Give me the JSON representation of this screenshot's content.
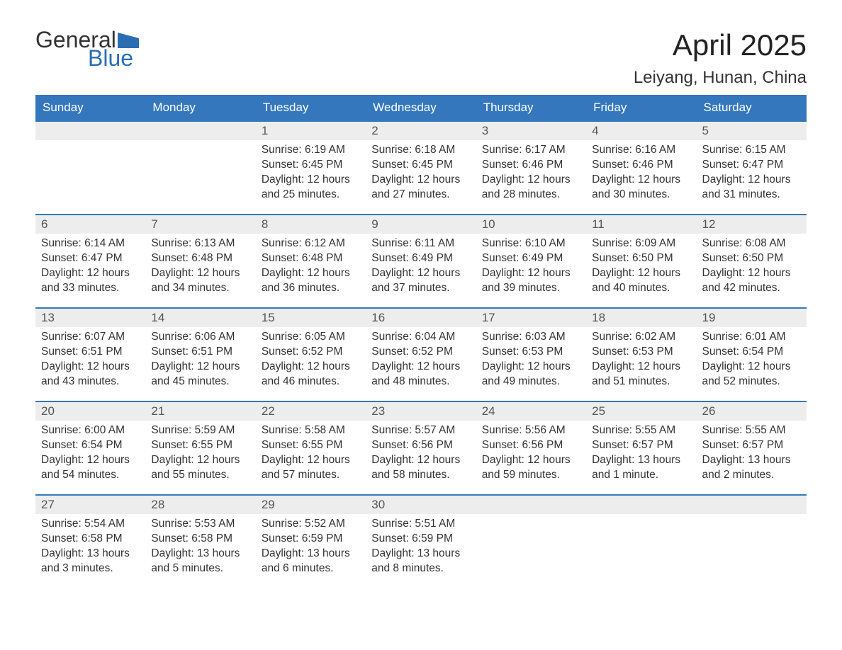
{
  "logo": {
    "general": "General",
    "blue": "Blue",
    "flag_color": "#2a6db3"
  },
  "header": {
    "title": "April 2025",
    "location": "Leiyang, Hunan, China"
  },
  "colors": {
    "header_bg": "#3477bd",
    "header_text": "#ffffff",
    "daynum_bg": "#ededed",
    "border": "#3477bd",
    "body_text": "#333333"
  },
  "day_names": [
    "Sunday",
    "Monday",
    "Tuesday",
    "Wednesday",
    "Thursday",
    "Friday",
    "Saturday"
  ],
  "weeks": [
    [
      {
        "n": "",
        "sr": "",
        "ss": "",
        "dl": ""
      },
      {
        "n": "",
        "sr": "",
        "ss": "",
        "dl": ""
      },
      {
        "n": "1",
        "sr": "Sunrise: 6:19 AM",
        "ss": "Sunset: 6:45 PM",
        "dl": "Daylight: 12 hours and 25 minutes."
      },
      {
        "n": "2",
        "sr": "Sunrise: 6:18 AM",
        "ss": "Sunset: 6:45 PM",
        "dl": "Daylight: 12 hours and 27 minutes."
      },
      {
        "n": "3",
        "sr": "Sunrise: 6:17 AM",
        "ss": "Sunset: 6:46 PM",
        "dl": "Daylight: 12 hours and 28 minutes."
      },
      {
        "n": "4",
        "sr": "Sunrise: 6:16 AM",
        "ss": "Sunset: 6:46 PM",
        "dl": "Daylight: 12 hours and 30 minutes."
      },
      {
        "n": "5",
        "sr": "Sunrise: 6:15 AM",
        "ss": "Sunset: 6:47 PM",
        "dl": "Daylight: 12 hours and 31 minutes."
      }
    ],
    [
      {
        "n": "6",
        "sr": "Sunrise: 6:14 AM",
        "ss": "Sunset: 6:47 PM",
        "dl": "Daylight: 12 hours and 33 minutes."
      },
      {
        "n": "7",
        "sr": "Sunrise: 6:13 AM",
        "ss": "Sunset: 6:48 PM",
        "dl": "Daylight: 12 hours and 34 minutes."
      },
      {
        "n": "8",
        "sr": "Sunrise: 6:12 AM",
        "ss": "Sunset: 6:48 PM",
        "dl": "Daylight: 12 hours and 36 minutes."
      },
      {
        "n": "9",
        "sr": "Sunrise: 6:11 AM",
        "ss": "Sunset: 6:49 PM",
        "dl": "Daylight: 12 hours and 37 minutes."
      },
      {
        "n": "10",
        "sr": "Sunrise: 6:10 AM",
        "ss": "Sunset: 6:49 PM",
        "dl": "Daylight: 12 hours and 39 minutes."
      },
      {
        "n": "11",
        "sr": "Sunrise: 6:09 AM",
        "ss": "Sunset: 6:50 PM",
        "dl": "Daylight: 12 hours and 40 minutes."
      },
      {
        "n": "12",
        "sr": "Sunrise: 6:08 AM",
        "ss": "Sunset: 6:50 PM",
        "dl": "Daylight: 12 hours and 42 minutes."
      }
    ],
    [
      {
        "n": "13",
        "sr": "Sunrise: 6:07 AM",
        "ss": "Sunset: 6:51 PM",
        "dl": "Daylight: 12 hours and 43 minutes."
      },
      {
        "n": "14",
        "sr": "Sunrise: 6:06 AM",
        "ss": "Sunset: 6:51 PM",
        "dl": "Daylight: 12 hours and 45 minutes."
      },
      {
        "n": "15",
        "sr": "Sunrise: 6:05 AM",
        "ss": "Sunset: 6:52 PM",
        "dl": "Daylight: 12 hours and 46 minutes."
      },
      {
        "n": "16",
        "sr": "Sunrise: 6:04 AM",
        "ss": "Sunset: 6:52 PM",
        "dl": "Daylight: 12 hours and 48 minutes."
      },
      {
        "n": "17",
        "sr": "Sunrise: 6:03 AM",
        "ss": "Sunset: 6:53 PM",
        "dl": "Daylight: 12 hours and 49 minutes."
      },
      {
        "n": "18",
        "sr": "Sunrise: 6:02 AM",
        "ss": "Sunset: 6:53 PM",
        "dl": "Daylight: 12 hours and 51 minutes."
      },
      {
        "n": "19",
        "sr": "Sunrise: 6:01 AM",
        "ss": "Sunset: 6:54 PM",
        "dl": "Daylight: 12 hours and 52 minutes."
      }
    ],
    [
      {
        "n": "20",
        "sr": "Sunrise: 6:00 AM",
        "ss": "Sunset: 6:54 PM",
        "dl": "Daylight: 12 hours and 54 minutes."
      },
      {
        "n": "21",
        "sr": "Sunrise: 5:59 AM",
        "ss": "Sunset: 6:55 PM",
        "dl": "Daylight: 12 hours and 55 minutes."
      },
      {
        "n": "22",
        "sr": "Sunrise: 5:58 AM",
        "ss": "Sunset: 6:55 PM",
        "dl": "Daylight: 12 hours and 57 minutes."
      },
      {
        "n": "23",
        "sr": "Sunrise: 5:57 AM",
        "ss": "Sunset: 6:56 PM",
        "dl": "Daylight: 12 hours and 58 minutes."
      },
      {
        "n": "24",
        "sr": "Sunrise: 5:56 AM",
        "ss": "Sunset: 6:56 PM",
        "dl": "Daylight: 12 hours and 59 minutes."
      },
      {
        "n": "25",
        "sr": "Sunrise: 5:55 AM",
        "ss": "Sunset: 6:57 PM",
        "dl": "Daylight: 13 hours and 1 minute."
      },
      {
        "n": "26",
        "sr": "Sunrise: 5:55 AM",
        "ss": "Sunset: 6:57 PM",
        "dl": "Daylight: 13 hours and 2 minutes."
      }
    ],
    [
      {
        "n": "27",
        "sr": "Sunrise: 5:54 AM",
        "ss": "Sunset: 6:58 PM",
        "dl": "Daylight: 13 hours and 3 minutes."
      },
      {
        "n": "28",
        "sr": "Sunrise: 5:53 AM",
        "ss": "Sunset: 6:58 PM",
        "dl": "Daylight: 13 hours and 5 minutes."
      },
      {
        "n": "29",
        "sr": "Sunrise: 5:52 AM",
        "ss": "Sunset: 6:59 PM",
        "dl": "Daylight: 13 hours and 6 minutes."
      },
      {
        "n": "30",
        "sr": "Sunrise: 5:51 AM",
        "ss": "Sunset: 6:59 PM",
        "dl": "Daylight: 13 hours and 8 minutes."
      },
      {
        "n": "",
        "sr": "",
        "ss": "",
        "dl": ""
      },
      {
        "n": "",
        "sr": "",
        "ss": "",
        "dl": ""
      },
      {
        "n": "",
        "sr": "",
        "ss": "",
        "dl": ""
      }
    ]
  ]
}
